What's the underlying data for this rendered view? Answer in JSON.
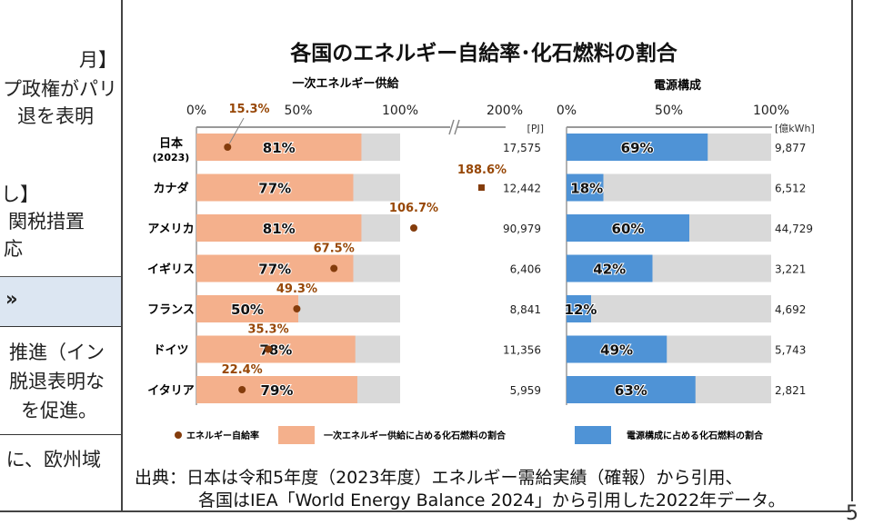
{
  "left_panel": {
    "lines": [
      "月】",
      "プ政権がパリ",
      "退を表明",
      "し】",
      "関税措置",
      "応",
      "»",
      "推進（イン",
      "脱退表明な",
      "を促進。",
      "に、欧州域"
    ]
  },
  "chart_data": {
    "type": "bar",
    "title": "各国のエネルギー自給率･化石燃料の割合",
    "categories": [
      "日本",
      "カナダ",
      "アメリカ",
      "イギリス",
      "フランス",
      "ドイツ",
      "イタリア"
    ],
    "category_sublabels": [
      "(2023)",
      "",
      "",
      "",
      "",
      "",
      ""
    ],
    "left_chart": {
      "title": "一次エネルギー供給",
      "ticks": [
        "0%",
        "50%",
        "100%",
        "200%"
      ],
      "tick_values": [
        0,
        50,
        100,
        200
      ],
      "axis_break": true,
      "unit": "[PJ]",
      "fossil_share": [
        81,
        77,
        81,
        77,
        50,
        78,
        79
      ],
      "fossil_labels": [
        "81%",
        "77%",
        "81%",
        "77%",
        "50%",
        "78%",
        "79%"
      ],
      "self_sufficiency": [
        15.3,
        188.6,
        106.7,
        67.5,
        49.3,
        35.3,
        22.4
      ],
      "self_sufficiency_labels": [
        "15.3%",
        "188.6%",
        "106.7%",
        "67.5%",
        "49.3%",
        "35.3%",
        "22.4%"
      ],
      "totals": [
        "17,575",
        "12,442",
        "90,979",
        "6,406",
        "8,841",
        "11,356",
        "5,959"
      ]
    },
    "right_chart": {
      "title": "電源構成",
      "ticks": [
        "0%",
        "50%",
        "100%"
      ],
      "tick_values": [
        0,
        50,
        100
      ],
      "unit": "[億kWh]",
      "fossil_share": [
        69,
        18,
        60,
        42,
        12,
        49,
        63
      ],
      "fossil_labels": [
        "69%",
        "18%",
        "60%",
        "42%",
        "12%",
        "49%",
        "63%"
      ],
      "totals": [
        "9,877",
        "6,512",
        "44,729",
        "3,221",
        "4,692",
        "5,743",
        "2,821"
      ]
    },
    "legend": [
      "エネルギー自給率",
      "一次エネルギー供給に占める化石燃料の割合",
      "電源構成に占める化石燃料の割合"
    ],
    "colors": {
      "primary": "#f4b08c",
      "power": "#4f93d6",
      "remainder": "#d9d9d9",
      "dot": "#843c0c",
      "label": "#974706"
    }
  },
  "source": {
    "line1": "出典：日本は令和5年度（2023年度）エネルギー需給実績（確報）から引用、",
    "line2": "各国はIEA「World Energy Balance 2024」から引用した2022年データ。"
  },
  "page_number": "5"
}
